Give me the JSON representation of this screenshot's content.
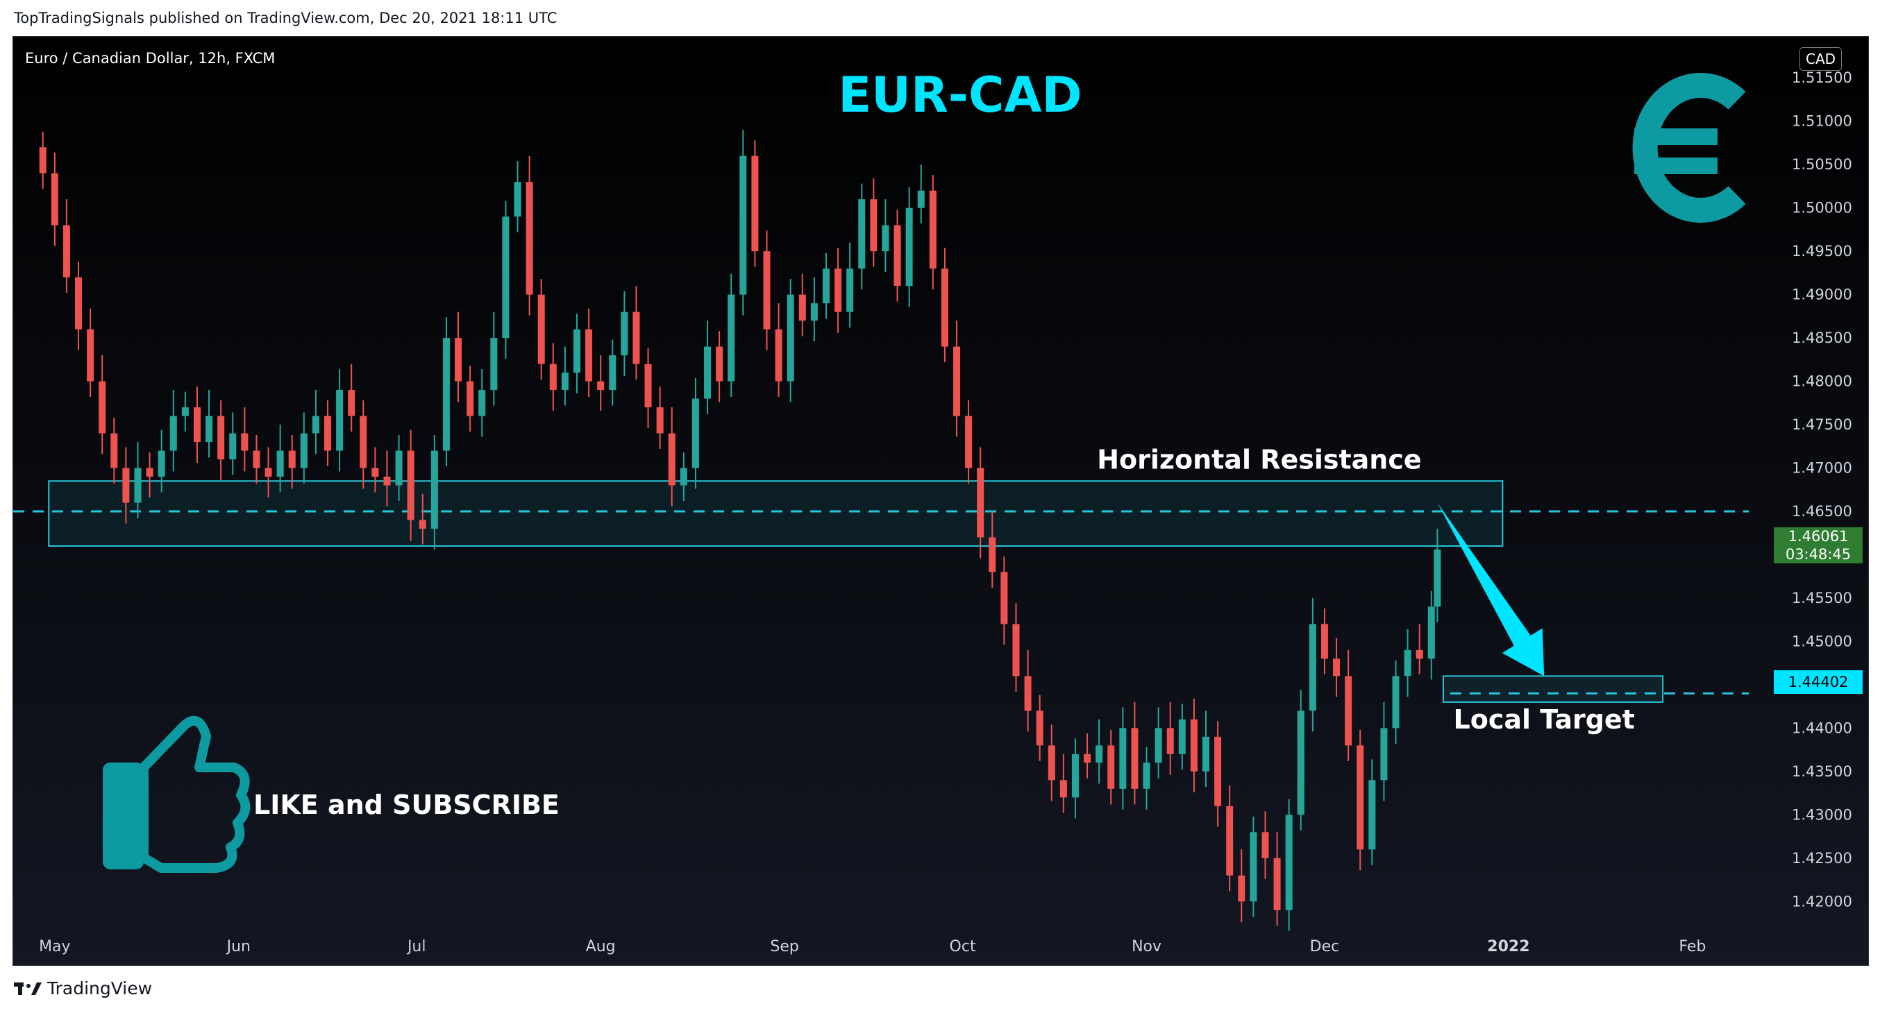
{
  "attribution": "TopTradingSignals published on TradingView.com, Dec 20, 2021 18:11 UTC",
  "footer_brand": "TradingView",
  "symbol_line": "Euro / Canadian Dollar, 12h, FXCM",
  "currency_badge": "CAD",
  "last_price": {
    "value": "1.46061",
    "countdown": "03:48:45"
  },
  "target_price_label": "1.44402",
  "colors": {
    "up": "#26a69a",
    "down": "#ef5350",
    "accent": "#00e5ff",
    "zone_border": "#26c6da"
  },
  "chart_data": {
    "type": "candlestick",
    "title": "EUR-CAD",
    "ylim": [
      1.4165,
      1.5175
    ],
    "y_ticks": [
      "1.42000",
      "1.42500",
      "1.43000",
      "1.43500",
      "1.44000",
      "1.44500",
      "1.45000",
      "1.45500",
      "1.46000",
      "1.46500",
      "1.47000",
      "1.47500",
      "1.48000",
      "1.48500",
      "1.49000",
      "1.49500",
      "1.50000",
      "1.50500",
      "1.51000",
      "1.51500"
    ],
    "x_ticks": [
      "May",
      "Jun",
      "Jul",
      "Aug",
      "Sep",
      "Oct",
      "Nov",
      "Dec",
      "2022",
      "Feb"
    ],
    "series": [
      {
        "values": [
          {
            "date": "2021-04-29",
            "close": 1.504
          },
          {
            "date": "2021-05-01",
            "close": 1.498
          },
          {
            "date": "2021-05-03",
            "close": 1.492
          },
          {
            "date": "2021-05-05",
            "close": 1.486
          },
          {
            "date": "2021-05-07",
            "close": 1.48
          },
          {
            "date": "2021-05-09",
            "close": 1.474
          },
          {
            "date": "2021-05-11",
            "close": 1.47
          },
          {
            "date": "2021-05-13",
            "close": 1.466
          },
          {
            "date": "2021-05-15",
            "close": 1.47
          },
          {
            "date": "2021-05-17",
            "close": 1.469
          },
          {
            "date": "2021-05-19",
            "close": 1.472
          },
          {
            "date": "2021-05-21",
            "close": 1.476
          },
          {
            "date": "2021-05-23",
            "close": 1.477
          },
          {
            "date": "2021-05-25",
            "close": 1.473
          },
          {
            "date": "2021-05-27",
            "close": 1.476
          },
          {
            "date": "2021-05-29",
            "close": 1.471
          },
          {
            "date": "2021-05-31",
            "close": 1.474
          },
          {
            "date": "2021-06-02",
            "close": 1.472
          },
          {
            "date": "2021-06-04",
            "close": 1.47
          },
          {
            "date": "2021-06-06",
            "close": 1.469
          },
          {
            "date": "2021-06-08",
            "close": 1.472
          },
          {
            "date": "2021-06-10",
            "close": 1.47
          },
          {
            "date": "2021-06-12",
            "close": 1.474
          },
          {
            "date": "2021-06-14",
            "close": 1.476
          },
          {
            "date": "2021-06-16",
            "close": 1.472
          },
          {
            "date": "2021-06-18",
            "close": 1.479
          },
          {
            "date": "2021-06-20",
            "close": 1.476
          },
          {
            "date": "2021-06-22",
            "close": 1.47
          },
          {
            "date": "2021-06-24",
            "close": 1.469
          },
          {
            "date": "2021-06-26",
            "close": 1.468
          },
          {
            "date": "2021-06-28",
            "close": 1.472
          },
          {
            "date": "2021-06-30",
            "close": 1.464
          },
          {
            "date": "2021-07-02",
            "close": 1.463
          },
          {
            "date": "2021-07-04",
            "close": 1.472
          },
          {
            "date": "2021-07-06",
            "close": 1.485
          },
          {
            "date": "2021-07-08",
            "close": 1.48
          },
          {
            "date": "2021-07-10",
            "close": 1.476
          },
          {
            "date": "2021-07-12",
            "close": 1.479
          },
          {
            "date": "2021-07-14",
            "close": 1.485
          },
          {
            "date": "2021-07-16",
            "close": 1.499
          },
          {
            "date": "2021-07-18",
            "close": 1.503
          },
          {
            "date": "2021-07-20",
            "close": 1.49
          },
          {
            "date": "2021-07-22",
            "close": 1.482
          },
          {
            "date": "2021-07-24",
            "close": 1.479
          },
          {
            "date": "2021-07-26",
            "close": 1.481
          },
          {
            "date": "2021-07-28",
            "close": 1.486
          },
          {
            "date": "2021-07-30",
            "close": 1.48
          },
          {
            "date": "2021-08-01",
            "close": 1.479
          },
          {
            "date": "2021-08-03",
            "close": 1.483
          },
          {
            "date": "2021-08-05",
            "close": 1.488
          },
          {
            "date": "2021-08-07",
            "close": 1.482
          },
          {
            "date": "2021-08-09",
            "close": 1.477
          },
          {
            "date": "2021-08-11",
            "close": 1.474
          },
          {
            "date": "2021-08-13",
            "close": 1.468
          },
          {
            "date": "2021-08-15",
            "close": 1.47
          },
          {
            "date": "2021-08-17",
            "close": 1.478
          },
          {
            "date": "2021-08-19",
            "close": 1.484
          },
          {
            "date": "2021-08-21",
            "close": 1.48
          },
          {
            "date": "2021-08-23",
            "close": 1.49
          },
          {
            "date": "2021-08-25",
            "close": 1.506
          },
          {
            "date": "2021-08-27",
            "close": 1.495
          },
          {
            "date": "2021-08-29",
            "close": 1.486
          },
          {
            "date": "2021-08-31",
            "close": 1.48
          },
          {
            "date": "2021-09-02",
            "close": 1.49
          },
          {
            "date": "2021-09-04",
            "close": 1.487
          },
          {
            "date": "2021-09-06",
            "close": 1.489
          },
          {
            "date": "2021-09-08",
            "close": 1.493
          },
          {
            "date": "2021-09-10",
            "close": 1.488
          },
          {
            "date": "2021-09-12",
            "close": 1.493
          },
          {
            "date": "2021-09-14",
            "close": 1.501
          },
          {
            "date": "2021-09-16",
            "close": 1.495
          },
          {
            "date": "2021-09-18",
            "close": 1.498
          },
          {
            "date": "2021-09-20",
            "close": 1.491
          },
          {
            "date": "2021-09-22",
            "close": 1.5
          },
          {
            "date": "2021-09-24",
            "close": 1.502
          },
          {
            "date": "2021-09-26",
            "close": 1.493
          },
          {
            "date": "2021-09-28",
            "close": 1.484
          },
          {
            "date": "2021-09-30",
            "close": 1.476
          },
          {
            "date": "2021-10-02",
            "close": 1.47
          },
          {
            "date": "2021-10-04",
            "close": 1.462
          },
          {
            "date": "2021-10-06",
            "close": 1.458
          },
          {
            "date": "2021-10-08",
            "close": 1.452
          },
          {
            "date": "2021-10-10",
            "close": 1.446
          },
          {
            "date": "2021-10-12",
            "close": 1.442
          },
          {
            "date": "2021-10-14",
            "close": 1.438
          },
          {
            "date": "2021-10-16",
            "close": 1.434
          },
          {
            "date": "2021-10-18",
            "close": 1.432
          },
          {
            "date": "2021-10-20",
            "close": 1.437
          },
          {
            "date": "2021-10-22",
            "close": 1.436
          },
          {
            "date": "2021-10-24",
            "close": 1.438
          },
          {
            "date": "2021-10-26",
            "close": 1.433
          },
          {
            "date": "2021-10-28",
            "close": 1.44
          },
          {
            "date": "2021-10-30",
            "close": 1.433
          },
          {
            "date": "2021-11-01",
            "close": 1.436
          },
          {
            "date": "2021-11-03",
            "close": 1.44
          },
          {
            "date": "2021-11-05",
            "close": 1.437
          },
          {
            "date": "2021-11-07",
            "close": 1.441
          },
          {
            "date": "2021-11-09",
            "close": 1.435
          },
          {
            "date": "2021-11-11",
            "close": 1.439
          },
          {
            "date": "2021-11-13",
            "close": 1.431
          },
          {
            "date": "2021-11-15",
            "close": 1.423
          },
          {
            "date": "2021-11-17",
            "close": 1.42
          },
          {
            "date": "2021-11-19",
            "close": 1.428
          },
          {
            "date": "2021-11-21",
            "close": 1.425
          },
          {
            "date": "2021-11-23",
            "close": 1.419
          },
          {
            "date": "2021-11-25",
            "close": 1.43
          },
          {
            "date": "2021-11-27",
            "close": 1.442
          },
          {
            "date": "2021-11-29",
            "close": 1.452
          },
          {
            "date": "2021-12-01",
            "close": 1.448
          },
          {
            "date": "2021-12-03",
            "close": 1.446
          },
          {
            "date": "2021-12-05",
            "close": 1.438
          },
          {
            "date": "2021-12-07",
            "close": 1.426
          },
          {
            "date": "2021-12-09",
            "close": 1.434
          },
          {
            "date": "2021-12-11",
            "close": 1.44
          },
          {
            "date": "2021-12-13",
            "close": 1.446
          },
          {
            "date": "2021-12-15",
            "close": 1.449
          },
          {
            "date": "2021-12-17",
            "close": 1.448
          },
          {
            "date": "2021-12-19",
            "close": 1.454
          },
          {
            "date": "2021-12-20",
            "close": 1.4606
          }
        ]
      }
    ],
    "annotations": [
      {
        "type": "zone",
        "label": "Horizontal Resistance",
        "y_range": [
          1.461,
          1.4685
        ],
        "x_range": [
          "2021-04-30",
          "2021-12-31"
        ],
        "level": 1.465
      },
      {
        "type": "zone",
        "label": "Local Target",
        "y_range": [
          1.443,
          1.446
        ],
        "x_range": [
          "2021-12-21",
          "2022-01-27"
        ],
        "level": 1.444
      },
      {
        "type": "arrow",
        "from": [
          "2021-12-20",
          1.466
        ],
        "to": [
          "2022-01-07",
          1.446
        ]
      },
      {
        "type": "text",
        "label": "LIKE and SUBSCRIBE"
      }
    ]
  }
}
